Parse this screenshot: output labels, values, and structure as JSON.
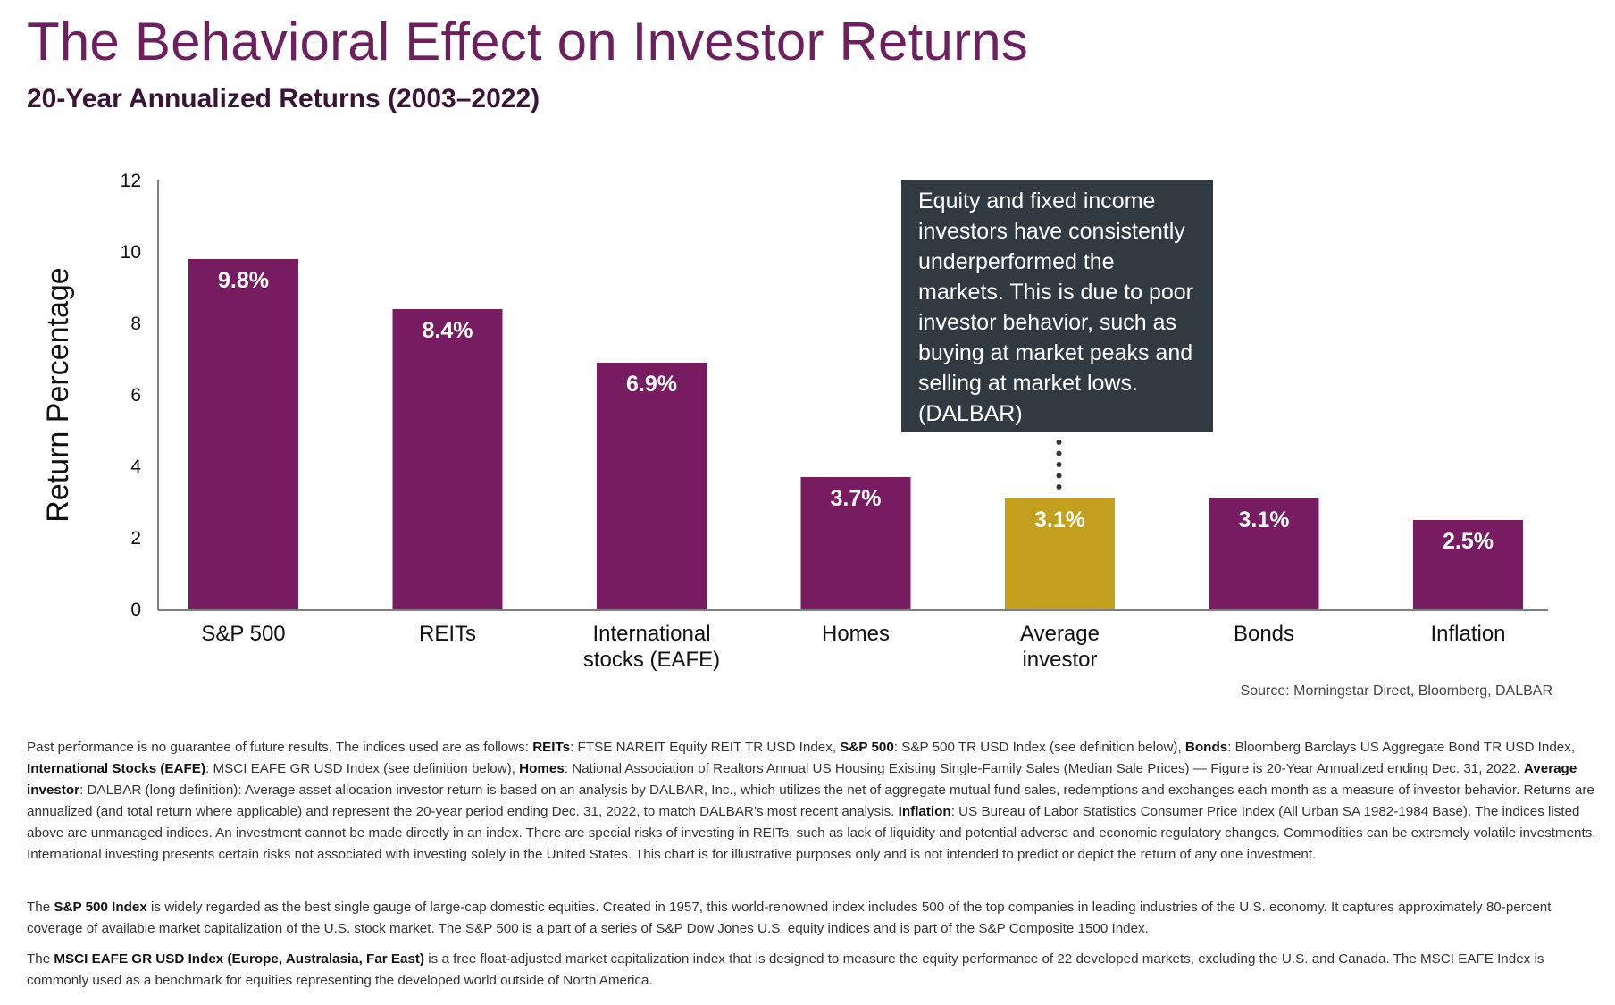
{
  "title": "The Behavioral Effect on Investor Returns",
  "subtitle": "20-Year Annualized Returns (2003–2022)",
  "callout": "Equity and fixed income investors have consistently underperformed the markets. This is due to poor investor behavior, such as buying at market peaks and selling at market lows. (DALBAR)",
  "source": "Source: Morningstar Direct, Bloomberg, DALBAR",
  "colors": {
    "bar": "#771c61",
    "highlight": "#c2a01e",
    "callout_bg": "#313a40",
    "title": "#6e1f5d"
  },
  "chart_data": {
    "type": "bar",
    "title": "20-Year Annualized Returns (2003–2022)",
    "xlabel": "",
    "ylabel": "Return Percentage",
    "ylim": [
      0,
      12
    ],
    "yticks": [
      0,
      2,
      4,
      6,
      8,
      10,
      12
    ],
    "grid": false,
    "categories": [
      [
        "S&P 500"
      ],
      [
        "REITs"
      ],
      [
        "International",
        "stocks (EAFE)"
      ],
      [
        "Homes"
      ],
      [
        "Average",
        "investor"
      ],
      [
        "Bonds"
      ],
      [
        "Inflation"
      ]
    ],
    "values": [
      9.8,
      8.4,
      6.9,
      3.7,
      3.1,
      3.1,
      2.5
    ],
    "value_labels": [
      "9.8%",
      "8.4%",
      "6.9%",
      "3.7%",
      "3.1%",
      "3.1%",
      "2.5%"
    ],
    "highlight_index": 4,
    "annotation": {
      "target": "Average investor"
    }
  },
  "footnotes": {
    "p1": [
      {
        "t": "Past performance is no guarantee of future results. The indices used are as follows: ",
        "b": false
      },
      {
        "t": "REITs",
        "b": true
      },
      {
        "t": ": FTSE NAREIT Equity REIT TR USD Index, ",
        "b": false
      },
      {
        "t": "S&P 500",
        "b": true
      },
      {
        "t": ": S&P 500 TR USD Index (see definition below), ",
        "b": false
      },
      {
        "t": "Bonds",
        "b": true
      },
      {
        "t": ": Bloomberg Barclays US Aggregate Bond TR USD Index, ",
        "b": false
      },
      {
        "t": "International Stocks (EAFE)",
        "b": true
      },
      {
        "t": ": MSCI EAFE GR USD Index (see definition below), ",
        "b": false
      },
      {
        "t": "Homes",
        "b": true
      },
      {
        "t": ": National Association of Realtors Annual US Housing Existing Single-Family Sales (Median Sale Prices) — Figure is 20-Year Annualized ending Dec. 31, 2022. ",
        "b": false
      },
      {
        "t": "Average investor",
        "b": true
      },
      {
        "t": ": DALBAR (long definition): Average asset allocation investor return is based on an analysis by DALBAR, Inc., which utilizes the net of aggregate mutual fund sales, redemptions and exchanges each month as a measure of investor behavior. Returns are annualized (and total return where applicable) and represent the 20-year period ending Dec. 31, 2022, to match DALBAR’s most recent analysis. ",
        "b": false
      },
      {
        "t": "Inflation",
        "b": true
      },
      {
        "t": ": US Bureau of Labor Statistics Consumer Price Index (All Urban SA 1982-1984 Base). The indices listed above are unmanaged indices. An investment cannot be made directly in an index. There are special risks of investing in REITs, such as lack of liquidity and potential adverse and economic regulatory changes. Commodities can be extremely volatile investments. International investing presents certain risks not associated with investing solely in the United States. This chart is for illustrative purposes only and is not intended to predict or depict the return of any one investment.",
        "b": false
      }
    ],
    "p2": [
      {
        "t": "The ",
        "b": false
      },
      {
        "t": "S&P 500 Index",
        "b": true
      },
      {
        "t": " is widely regarded as the best single gauge of large-cap domestic equities. Created in 1957, this world-renowned index includes 500 of the top companies in leading industries of the U.S. economy. It captures approximately 80-percent coverage of available market capitalization of the U.S. stock market. The S&P 500 is a part of a series of S&P Dow Jones U.S. equity indices and is part of the S&P Composite 1500 Index.",
        "b": false
      }
    ],
    "p3": [
      {
        "t": "The ",
        "b": false
      },
      {
        "t": "MSCI EAFE GR USD Index (Europe, Australasia, Far East)",
        "b": true
      },
      {
        "t": " is a free float-adjusted market capitalization index that is designed to measure the equity performance of 22 developed markets, excluding the U.S. and Canada. The MSCI EAFE Index is commonly used as a benchmark for equities representing the developed world outside of North America.",
        "b": false
      }
    ]
  }
}
